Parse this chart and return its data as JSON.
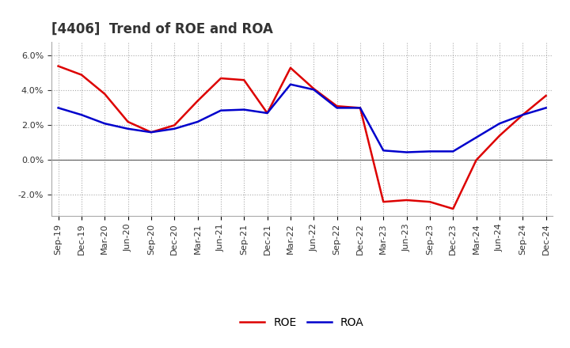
{
  "title": "[4406]  Trend of ROE and ROA",
  "ylim": [
    -3.2,
    6.8
  ],
  "yticks": [
    -2.0,
    0.0,
    2.0,
    4.0,
    6.0
  ],
  "background_color": "#ffffff",
  "plot_bg_color": "#ffffff",
  "grid_color": "#aaaaaa",
  "labels": [
    "Sep-19",
    "Dec-19",
    "Mar-20",
    "Jun-20",
    "Sep-20",
    "Dec-20",
    "Mar-21",
    "Jun-21",
    "Sep-21",
    "Dec-21",
    "Mar-22",
    "Jun-22",
    "Sep-22",
    "Dec-22",
    "Mar-23",
    "Jun-23",
    "Sep-23",
    "Dec-23",
    "Mar-24",
    "Jun-24",
    "Sep-24",
    "Dec-24"
  ],
  "roe": [
    5.4,
    4.9,
    3.8,
    2.2,
    1.6,
    2.0,
    3.4,
    4.7,
    4.6,
    2.7,
    5.3,
    4.1,
    3.1,
    3.0,
    -2.4,
    -2.3,
    -2.4,
    -2.8,
    0.0,
    1.4,
    2.6,
    3.7
  ],
  "roa": [
    3.0,
    2.6,
    2.1,
    1.8,
    1.6,
    1.8,
    2.2,
    2.85,
    2.9,
    2.7,
    4.35,
    4.05,
    3.0,
    3.0,
    0.55,
    0.45,
    0.5,
    0.5,
    1.3,
    2.1,
    2.6,
    3.0
  ],
  "roe_color": "#dd0000",
  "roa_color": "#0000cc",
  "line_width": 1.8,
  "title_fontsize": 12,
  "tick_fontsize": 8,
  "legend_fontsize": 10
}
